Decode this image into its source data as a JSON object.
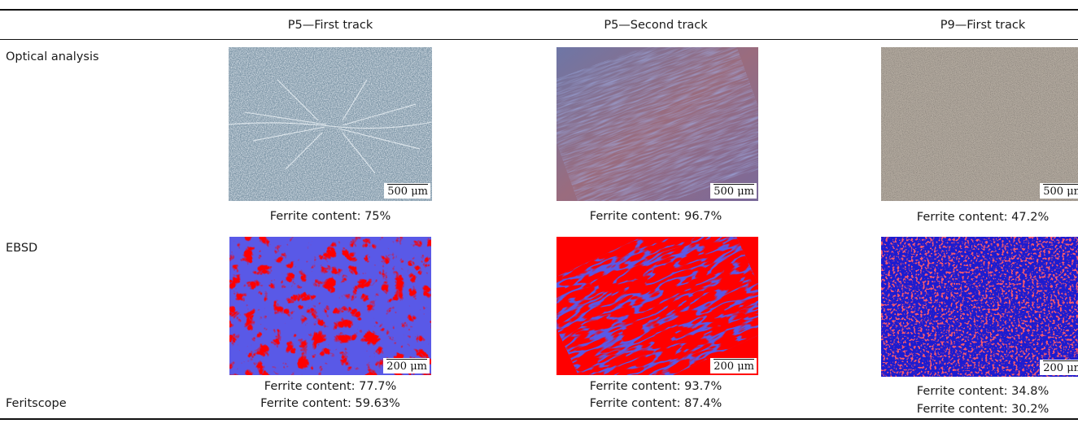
{
  "columns": [
    "P5—First track",
    "P5—Second track",
    "P9—First track"
  ],
  "rows": [
    {
      "label": "Optical analysis",
      "captions": [
        "Ferrite content: 75%",
        "Ferrite content: 96.7%",
        "Ferrite content: 47.2%"
      ],
      "scale": "500 μm"
    },
    {
      "label": "EBSD",
      "captions": [
        "Ferrite content: 77.7%",
        "Ferrite content: 93.7%",
        "Ferrite content: 34.8%"
      ],
      "scale": "200 μm"
    },
    {
      "label": "Feritscope",
      "values": [
        "Ferrite content: 59.63%",
        "Ferrite content: 87.4%",
        "Ferrite content: 30.2%"
      ]
    }
  ],
  "image_tones": {
    "optical_p5_first": "#7f97a8",
    "optical_p5_second": "#8a6f8c",
    "optical_p9_first": "#b3aa9f",
    "ebsd_ferrite": "#ff0000",
    "ebsd_austenite": "#1c1cd0"
  }
}
